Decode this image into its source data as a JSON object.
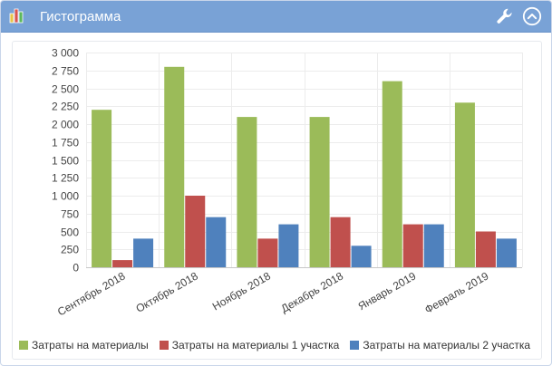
{
  "window": {
    "title": "Гистограмма",
    "icons": {
      "chart": "bar-chart-icon",
      "settings": "wrench-icon",
      "collapse": "chevron-up-circle-icon"
    },
    "header_color": "#79a2d6"
  },
  "chart_data": {
    "type": "bar",
    "categories": [
      "Сентябрь 2018",
      "Октябрь 2018",
      "Ноябрь 2018",
      "Декабрь 2018",
      "Январь 2019",
      "Февраль 2019"
    ],
    "series": [
      {
        "name": "Затраты на материалы",
        "color": "#9bbb59",
        "values": [
          2200,
          2800,
          2100,
          2100,
          2600,
          2300
        ]
      },
      {
        "name": "Затраты на материалы 1 участка",
        "color": "#c0504d",
        "values": [
          100,
          1000,
          400,
          700,
          600,
          500
        ]
      },
      {
        "name": "Затраты на материалы 2 участка",
        "color": "#4f81bd",
        "values": [
          400,
          700,
          600,
          300,
          600,
          400
        ]
      }
    ],
    "yticks": [
      "0",
      "250",
      "500",
      "750",
      "1 000",
      "1 250",
      "1 500",
      "1 750",
      "2 000",
      "2 250",
      "2 500",
      "2 750",
      "3 000"
    ],
    "ylim": [
      0,
      3000
    ],
    "grid": true,
    "legend": "bottom"
  }
}
